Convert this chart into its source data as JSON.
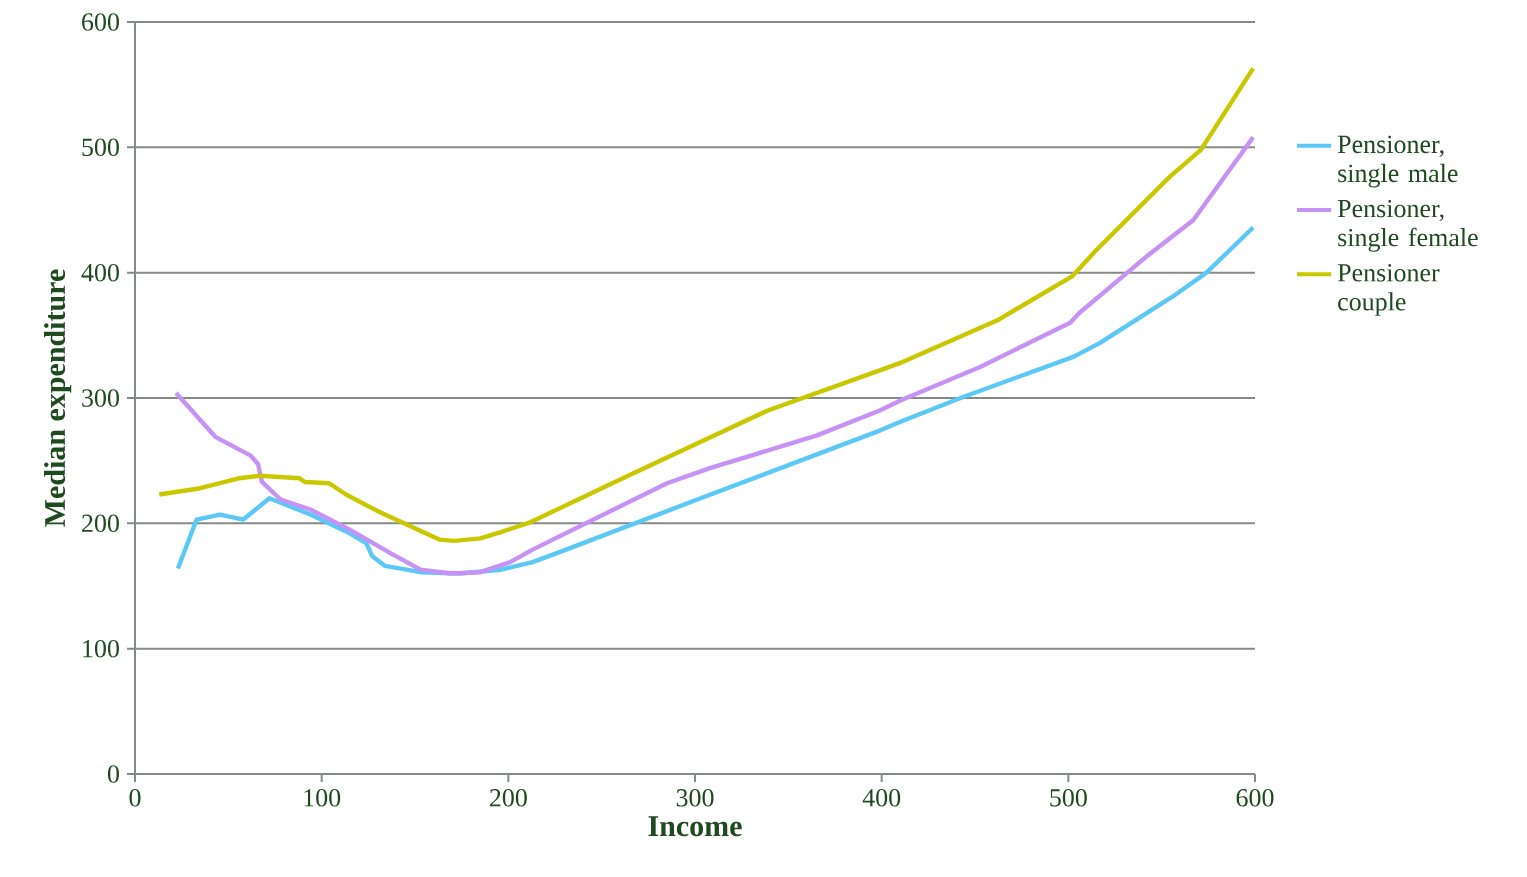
{
  "chart_data": {
    "type": "line",
    "xlabel": "Income",
    "ylabel": "Median expenditure",
    "xlim": [
      0,
      600
    ],
    "ylim": [
      0,
      600
    ],
    "xticks": [
      0,
      100,
      200,
      300,
      400,
      500,
      600
    ],
    "yticks": [
      0,
      100,
      200,
      300,
      400,
      500,
      600
    ],
    "grid": "y",
    "legend": "right",
    "marker": "none",
    "line_style": "solid",
    "series": [
      {
        "name": "Pensioner, single male",
        "color": "#5bc8f5",
        "x": [
          23,
          33,
          45.5,
          58,
          72,
          94,
          115,
          124,
          127,
          134,
          153,
          174,
          196,
          213,
          231,
          303,
          399,
          410,
          444,
          503,
          517,
          556,
          574,
          599
        ],
        "values": [
          164,
          203,
          207,
          203,
          220,
          207,
          192,
          184,
          174,
          166,
          161,
          160,
          163,
          169,
          179,
          220,
          274,
          281,
          301,
          333,
          344,
          381,
          400,
          436
        ]
      },
      {
        "name": "Pensioner, single female",
        "color": "#c792f5",
        "x": [
          22,
          43,
          62,
          66,
          68,
          78,
          94,
          115,
          137,
          153,
          169,
          185,
          201,
          213,
          285,
          308,
          365,
          399,
          410,
          453,
          501,
          506,
          542,
          567,
          599
        ],
        "values": [
          304,
          269,
          254,
          247,
          233,
          219,
          211,
          195,
          176,
          163,
          160,
          161,
          169,
          179,
          232,
          244,
          270,
          290,
          298,
          325,
          360,
          368,
          413,
          442,
          508
        ]
      },
      {
        "name": "Pensioner couple",
        "color": "#c9c800",
        "x": [
          13,
          35,
          56,
          67,
          88,
          91,
          104,
          113,
          131,
          147,
          163,
          171,
          185,
          196,
          212,
          267,
          339,
          399,
          410,
          462,
          502,
          515,
          554,
          571,
          599
        ],
        "values": [
          223,
          228,
          236,
          238,
          236,
          233,
          232,
          223,
          209,
          198,
          187,
          186,
          188,
          193,
          201,
          240,
          290,
          322,
          328,
          362,
          397,
          418,
          476,
          498,
          563
        ]
      }
    ]
  }
}
